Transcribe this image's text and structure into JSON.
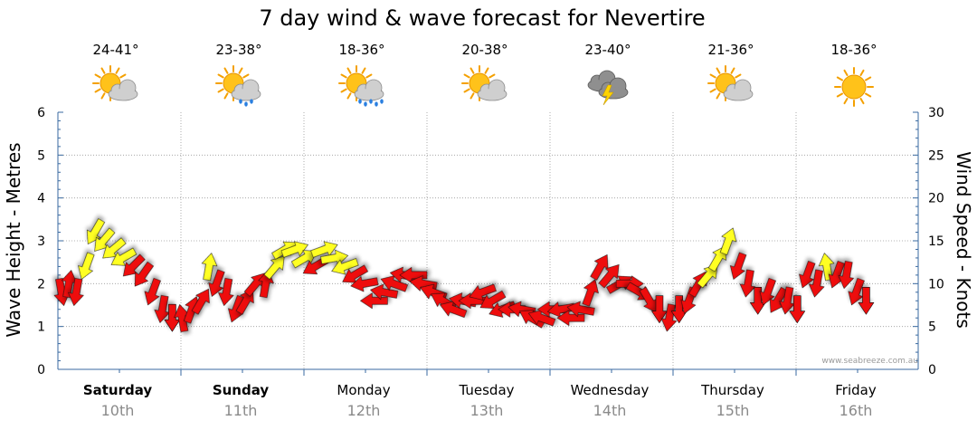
{
  "chart_data": {
    "type": "line",
    "title": "7 day wind & wave forecast for Nevertire",
    "ylabel_left": "Wave Height - Metres",
    "ylabel_right": "Wind Speed - Knots",
    "ylim_left": [
      0,
      6
    ],
    "ylim_right": [
      0,
      30
    ],
    "yticks_left": [
      "0",
      "1",
      "2",
      "3",
      "4",
      "5",
      "6"
    ],
    "yticks_right": [
      "0",
      "5",
      "10",
      "15",
      "20",
      "25",
      "30"
    ],
    "grid": true,
    "credit": "www.seabreeze.com.au",
    "days": [
      {
        "day": "Saturday",
        "date": "10th",
        "temp": "24-41°",
        "weather": "partly-cloudy-icon",
        "bold": true
      },
      {
        "day": "Sunday",
        "date": "11th",
        "temp": "23-38°",
        "weather": "showers-icon",
        "bold": true
      },
      {
        "day": "Monday",
        "date": "12th",
        "temp": "18-36°",
        "weather": "rain-icon",
        "bold": false
      },
      {
        "day": "Tuesday",
        "date": "13th",
        "temp": "20-38°",
        "weather": "partly-cloudy-icon",
        "bold": false
      },
      {
        "day": "Wednesday",
        "date": "14th",
        "temp": "23-40°",
        "weather": "storm-icon",
        "bold": false
      },
      {
        "day": "Thursday",
        "date": "15th",
        "temp": "21-36°",
        "weather": "partly-cloudy-icon",
        "bold": false
      },
      {
        "day": "Friday",
        "date": "16th",
        "temp": "18-36°",
        "weather": "sunny-icon",
        "bold": false
      }
    ],
    "colors": {
      "strong": "#ee1111",
      "moderate": "#ffff22",
      "outline": "#111111",
      "axis": "#3a6aa0",
      "grid": "#9a9a9a"
    },
    "wind_series": {
      "name": "",
      "note_units": "wind speed in knots at 3-hourly steps from Saturday 00:00; direction in degrees the arrow points (0 = up); level strong = red, moderate = yellow",
      "points": [
        {
          "t": 0.0,
          "speed": 9,
          "dir": 170,
          "level": "strong"
        },
        {
          "t": 0.06,
          "speed": 10,
          "dir": 10,
          "level": "strong"
        },
        {
          "t": 0.12,
          "speed": 9,
          "dir": 190,
          "level": "strong"
        },
        {
          "t": 0.2,
          "speed": 12,
          "dir": 200,
          "level": "moderate"
        },
        {
          "t": 0.27,
          "speed": 16,
          "dir": 210,
          "level": "moderate"
        },
        {
          "t": 0.34,
          "speed": 15,
          "dir": 220,
          "level": "moderate"
        },
        {
          "t": 0.42,
          "speed": 14,
          "dir": 230,
          "level": "moderate"
        },
        {
          "t": 0.5,
          "speed": 13,
          "dir": 240,
          "level": "moderate"
        },
        {
          "t": 0.58,
          "speed": 12,
          "dir": 225,
          "level": "strong"
        },
        {
          "t": 0.66,
          "speed": 11,
          "dir": 215,
          "level": "strong"
        },
        {
          "t": 0.74,
          "speed": 9,
          "dir": 200,
          "level": "strong"
        },
        {
          "t": 0.82,
          "speed": 7,
          "dir": 190,
          "level": "strong"
        },
        {
          "t": 0.9,
          "speed": 6,
          "dir": 180,
          "level": "strong"
        },
        {
          "t": 0.98,
          "speed": 6,
          "dir": 350,
          "level": "strong"
        },
        {
          "t": 1.06,
          "speed": 7,
          "dir": 20,
          "level": "strong"
        },
        {
          "t": 1.14,
          "speed": 8,
          "dir": 30,
          "level": "strong"
        },
        {
          "t": 1.2,
          "speed": 12,
          "dir": 10,
          "level": "moderate"
        },
        {
          "t": 1.26,
          "speed": 10,
          "dir": 200,
          "level": "strong"
        },
        {
          "t": 1.34,
          "speed": 9,
          "dir": 190,
          "level": "strong"
        },
        {
          "t": 1.42,
          "speed": 7,
          "dir": 200,
          "level": "strong"
        },
        {
          "t": 1.5,
          "speed": 8,
          "dir": 30,
          "level": "strong"
        },
        {
          "t": 1.58,
          "speed": 10,
          "dir": 40,
          "level": "strong"
        },
        {
          "t": 1.66,
          "speed": 10,
          "dir": 10,
          "level": "strong"
        },
        {
          "t": 1.74,
          "speed": 12,
          "dir": 40,
          "level": "moderate"
        },
        {
          "t": 1.82,
          "speed": 14,
          "dir": 60,
          "level": "moderate"
        },
        {
          "t": 1.9,
          "speed": 14,
          "dir": 70,
          "level": "moderate"
        },
        {
          "t": 1.98,
          "speed": 13,
          "dir": 60,
          "level": "moderate"
        },
        {
          "t": 2.06,
          "speed": 12,
          "dir": 240,
          "level": "strong"
        },
        {
          "t": 2.14,
          "speed": 14,
          "dir": 70,
          "level": "moderate"
        },
        {
          "t": 2.22,
          "speed": 13,
          "dir": 80,
          "level": "moderate"
        },
        {
          "t": 2.3,
          "speed": 12,
          "dir": 250,
          "level": "moderate"
        },
        {
          "t": 2.38,
          "speed": 11,
          "dir": 240,
          "level": "strong"
        },
        {
          "t": 2.46,
          "speed": 10,
          "dir": 260,
          "level": "strong"
        },
        {
          "t": 2.54,
          "speed": 8,
          "dir": 270,
          "level": "strong"
        },
        {
          "t": 2.62,
          "speed": 9,
          "dir": 280,
          "level": "strong"
        },
        {
          "t": 2.7,
          "speed": 10,
          "dir": 290,
          "level": "strong"
        },
        {
          "t": 2.78,
          "speed": 11,
          "dir": 280,
          "level": "strong"
        },
        {
          "t": 2.86,
          "speed": 11,
          "dir": 270,
          "level": "strong"
        },
        {
          "t": 2.94,
          "speed": 10,
          "dir": 280,
          "level": "strong"
        },
        {
          "t": 3.02,
          "speed": 9,
          "dir": 290,
          "level": "strong"
        },
        {
          "t": 3.1,
          "speed": 8,
          "dir": 300,
          "level": "strong"
        },
        {
          "t": 3.18,
          "speed": 7,
          "dir": 290,
          "level": "strong"
        },
        {
          "t": 3.26,
          "speed": 8,
          "dir": 280,
          "level": "strong"
        },
        {
          "t": 3.34,
          "speed": 8,
          "dir": 270,
          "level": "strong"
        },
        {
          "t": 3.42,
          "speed": 9,
          "dir": 250,
          "level": "strong"
        },
        {
          "t": 3.5,
          "speed": 8,
          "dir": 240,
          "level": "strong"
        },
        {
          "t": 3.58,
          "speed": 7,
          "dir": 250,
          "level": "strong"
        },
        {
          "t": 3.66,
          "speed": 7,
          "dir": 270,
          "level": "strong"
        },
        {
          "t": 3.74,
          "speed": 7,
          "dir": 280,
          "level": "strong"
        },
        {
          "t": 3.82,
          "speed": 6,
          "dir": 300,
          "level": "strong"
        },
        {
          "t": 3.9,
          "speed": 6,
          "dir": 290,
          "level": "strong"
        },
        {
          "t": 3.98,
          "speed": 7,
          "dir": 270,
          "level": "strong"
        },
        {
          "t": 4.06,
          "speed": 7,
          "dir": 260,
          "level": "strong"
        },
        {
          "t": 4.14,
          "speed": 6,
          "dir": 270,
          "level": "strong"
        },
        {
          "t": 4.22,
          "speed": 7,
          "dir": 280,
          "level": "strong"
        },
        {
          "t": 4.3,
          "speed": 9,
          "dir": 20,
          "level": "strong"
        },
        {
          "t": 4.38,
          "speed": 12,
          "dir": 30,
          "level": "strong"
        },
        {
          "t": 4.46,
          "speed": 11,
          "dir": 40,
          "level": "strong"
        },
        {
          "t": 4.54,
          "speed": 10,
          "dir": 60,
          "level": "strong"
        },
        {
          "t": 4.62,
          "speed": 10,
          "dir": 90,
          "level": "strong"
        },
        {
          "t": 4.7,
          "speed": 9,
          "dir": 120,
          "level": "strong"
        },
        {
          "t": 4.78,
          "speed": 8,
          "dir": 150,
          "level": "strong"
        },
        {
          "t": 4.86,
          "speed": 7,
          "dir": 180,
          "level": "strong"
        },
        {
          "t": 4.94,
          "speed": 6,
          "dir": 190,
          "level": "strong"
        },
        {
          "t": 5.02,
          "speed": 7,
          "dir": 180,
          "level": "strong"
        },
        {
          "t": 5.1,
          "speed": 8,
          "dir": 200,
          "level": "strong"
        },
        {
          "t": 5.18,
          "speed": 10,
          "dir": 30,
          "level": "strong"
        },
        {
          "t": 5.26,
          "speed": 11,
          "dir": 40,
          "level": "moderate"
        },
        {
          "t": 5.34,
          "speed": 13,
          "dir": 30,
          "level": "moderate"
        },
        {
          "t": 5.42,
          "speed": 15,
          "dir": 20,
          "level": "moderate"
        },
        {
          "t": 5.5,
          "speed": 12,
          "dir": 200,
          "level": "strong"
        },
        {
          "t": 5.58,
          "speed": 10,
          "dir": 190,
          "level": "strong"
        },
        {
          "t": 5.66,
          "speed": 8,
          "dir": 180,
          "level": "strong"
        },
        {
          "t": 5.74,
          "speed": 9,
          "dir": 200,
          "level": "strong"
        },
        {
          "t": 5.82,
          "speed": 8,
          "dir": 210,
          "level": "strong"
        },
        {
          "t": 5.9,
          "speed": 8,
          "dir": 190,
          "level": "strong"
        },
        {
          "t": 5.98,
          "speed": 7,
          "dir": 180,
          "level": "strong"
        },
        {
          "t": 6.06,
          "speed": 11,
          "dir": 200,
          "level": "strong"
        },
        {
          "t": 6.14,
          "speed": 10,
          "dir": 190,
          "level": "strong"
        },
        {
          "t": 6.22,
          "speed": 12,
          "dir": 350,
          "level": "moderate"
        },
        {
          "t": 6.3,
          "speed": 11,
          "dir": 200,
          "level": "strong"
        },
        {
          "t": 6.38,
          "speed": 11,
          "dir": 190,
          "level": "strong"
        },
        {
          "t": 6.46,
          "speed": 9,
          "dir": 200,
          "level": "strong"
        },
        {
          "t": 6.54,
          "speed": 8,
          "dir": 180,
          "level": "strong"
        }
      ]
    }
  }
}
